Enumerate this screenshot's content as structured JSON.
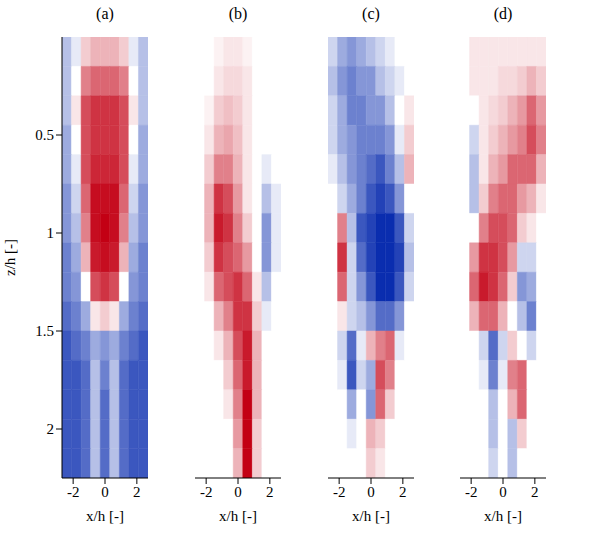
{
  "chart_data": [
    {
      "type": "heatmap",
      "title": "(a)",
      "xlabel": "x/h [-]",
      "ylabel": "z/h [-]",
      "xlim": [
        -2.7,
        2.7
      ],
      "ylim": [
        0,
        2.25
      ],
      "xticks": [
        -2,
        0,
        2
      ],
      "yticks": [
        0.5,
        1,
        1.5,
        2
      ],
      "color_range": [
        -1,
        1
      ],
      "x": [
        -2.4,
        -1.8,
        -1.2,
        -0.6,
        0,
        0.6,
        1.2,
        1.8,
        2.4
      ],
      "y": [
        0.075,
        0.225,
        0.375,
        0.525,
        0.675,
        0.825,
        0.975,
        1.125,
        1.275,
        1.425,
        1.575,
        1.725,
        1.875,
        2.025,
        2.175
      ],
      "values": [
        [
          -0.3,
          -0.1,
          0.2,
          0.3,
          0.3,
          0.3,
          0.2,
          -0.1,
          -0.3
        ],
        [
          -0.3,
          0,
          0.5,
          0.6,
          0.6,
          0.6,
          0.5,
          0,
          -0.3
        ],
        [
          -0.3,
          0.1,
          0.7,
          0.8,
          0.8,
          0.8,
          0.7,
          0.1,
          -0.3
        ],
        [
          -0.4,
          0,
          0.7,
          0.8,
          0.8,
          0.8,
          0.7,
          0,
          -0.4
        ],
        [
          -0.4,
          -0.1,
          0.7,
          0.85,
          0.85,
          0.85,
          0.7,
          -0.1,
          -0.4
        ],
        [
          -0.5,
          -0.2,
          0.6,
          0.95,
          0.95,
          0.95,
          0.6,
          -0.2,
          -0.5
        ],
        [
          -0.5,
          -0.3,
          0.5,
          0.95,
          1,
          0.95,
          0.5,
          -0.3,
          -0.5
        ],
        [
          -0.6,
          -0.4,
          0.3,
          0.9,
          0.95,
          0.9,
          0.3,
          -0.4,
          -0.6
        ],
        [
          -0.6,
          -0.5,
          0,
          0.7,
          0.8,
          0.7,
          0,
          -0.5,
          -0.6
        ],
        [
          -0.7,
          -0.6,
          -0.4,
          0.1,
          0.2,
          0.1,
          -0.4,
          -0.6,
          -0.7
        ],
        [
          -0.8,
          -0.7,
          -0.6,
          -0.4,
          -0.5,
          -0.4,
          -0.6,
          -0.7,
          -0.8
        ],
        [
          -0.8,
          -0.8,
          -0.7,
          -0.3,
          -0.6,
          -0.3,
          -0.7,
          -0.8,
          -0.8
        ],
        [
          -0.8,
          -0.8,
          -0.7,
          -0.3,
          -0.7,
          -0.3,
          -0.7,
          -0.8,
          -0.8
        ],
        [
          -0.8,
          -0.8,
          -0.7,
          -0.3,
          -0.7,
          -0.3,
          -0.7,
          -0.8,
          -0.8
        ],
        [
          -0.8,
          -0.8,
          -0.7,
          -0.3,
          -0.7,
          -0.3,
          -0.7,
          -0.8,
          -0.8
        ]
      ]
    },
    {
      "type": "heatmap",
      "title": "(b)",
      "xlabel": "x/h [-]",
      "tick_labels": "x",
      "xlim": [
        -2.7,
        2.7
      ],
      "ylim": [
        0,
        2.25
      ],
      "xticks": [
        -2,
        0,
        2
      ],
      "color_range": [
        -1,
        1
      ],
      "x": [
        -2.4,
        -1.8,
        -1.2,
        -0.6,
        0,
        0.6,
        1.2,
        1.8,
        2.4
      ],
      "y": [
        0.075,
        0.225,
        0.375,
        0.525,
        0.675,
        0.825,
        0.975,
        1.125,
        1.275,
        1.425,
        1.575,
        1.725,
        1.875,
        2.025,
        2.175
      ],
      "values": [
        [
          0,
          0,
          0.05,
          0.1,
          0.1,
          0.05,
          0,
          0,
          0
        ],
        [
          0,
          0,
          0.1,
          0.15,
          0.15,
          0.1,
          0,
          0,
          0
        ],
        [
          0,
          0.05,
          0.2,
          0.25,
          0.2,
          0.1,
          0,
          0,
          0
        ],
        [
          0,
          0.1,
          0.3,
          0.35,
          0.25,
          0.1,
          0,
          0,
          0
        ],
        [
          0,
          0.2,
          0.5,
          0.5,
          0.3,
          0.1,
          0,
          -0.1,
          0
        ],
        [
          0,
          0.3,
          0.8,
          0.7,
          0.4,
          0.1,
          0,
          -0.3,
          -0.1
        ],
        [
          0,
          0.3,
          0.9,
          0.8,
          0.5,
          0.2,
          0,
          -0.5,
          -0.1
        ],
        [
          0,
          0.2,
          0.8,
          0.7,
          0.6,
          0.4,
          0,
          -0.5,
          -0.1
        ],
        [
          0,
          0.1,
          0.6,
          0.7,
          0.8,
          0.6,
          0.1,
          -0.3,
          0
        ],
        [
          0,
          0,
          0.3,
          0.5,
          0.8,
          0.8,
          0.2,
          -0.1,
          0
        ],
        [
          0,
          0,
          0.1,
          0.3,
          0.7,
          0.9,
          0.3,
          0,
          0
        ],
        [
          0,
          0,
          0,
          0.2,
          0.6,
          0.9,
          0.3,
          0,
          0
        ],
        [
          0,
          0,
          0,
          0.1,
          0.5,
          1,
          0.3,
          0,
          0
        ],
        [
          0,
          0,
          0,
          0,
          0.4,
          1,
          0.2,
          0,
          0
        ],
        [
          0,
          0,
          0,
          0,
          0.3,
          1,
          0.2,
          0,
          0
        ]
      ]
    },
    {
      "type": "heatmap",
      "title": "(c)",
      "xlabel": "x/h [-]",
      "tick_labels": "x",
      "xlim": [
        -2.7,
        2.7
      ],
      "ylim": [
        0,
        2.25
      ],
      "xticks": [
        -2,
        0,
        2
      ],
      "color_range": [
        -1,
        1
      ],
      "x": [
        -2.4,
        -1.8,
        -1.2,
        -0.6,
        0,
        0.6,
        1.2,
        1.8,
        2.4
      ],
      "y": [
        0.075,
        0.225,
        0.375,
        0.525,
        0.675,
        0.825,
        0.975,
        1.125,
        1.275,
        1.425,
        1.575,
        1.725,
        1.875,
        2.025,
        2.175
      ],
      "values": [
        [
          -0.2,
          -0.4,
          -0.5,
          -0.4,
          -0.3,
          -0.2,
          -0.1,
          0,
          0
        ],
        [
          -0.3,
          -0.5,
          -0.6,
          -0.5,
          -0.5,
          -0.3,
          -0.2,
          -0.1,
          0
        ],
        [
          -0.2,
          -0.4,
          -0.6,
          -0.6,
          -0.5,
          -0.5,
          -0.3,
          0,
          0.1
        ],
        [
          -0.2,
          -0.4,
          -0.5,
          -0.6,
          -0.6,
          -0.6,
          -0.5,
          -0.1,
          0.2
        ],
        [
          -0.1,
          -0.3,
          -0.5,
          -0.6,
          -0.7,
          -0.8,
          -0.6,
          -0.3,
          0.3
        ],
        [
          0,
          -0.2,
          -0.4,
          -0.6,
          -0.8,
          -0.9,
          -0.8,
          -0.5,
          0
        ],
        [
          0,
          0.5,
          -0.3,
          -0.8,
          -0.9,
          -1,
          -1,
          -0.8,
          -0.2
        ],
        [
          0,
          0.8,
          -0.2,
          -0.7,
          -0.9,
          -1,
          -1,
          -0.9,
          -0.3
        ],
        [
          0,
          0.6,
          -0.2,
          -0.5,
          -0.8,
          -1,
          -1,
          -0.8,
          -0.2
        ],
        [
          0,
          0.1,
          -0.2,
          -0.3,
          -0.5,
          -0.7,
          -0.7,
          -0.5,
          0
        ],
        [
          0,
          -0.2,
          -0.7,
          -0.1,
          0.3,
          0.5,
          0.6,
          -0.1,
          0
        ],
        [
          0,
          -0.1,
          -0.8,
          -0.2,
          -0.4,
          0.7,
          0.5,
          0,
          0
        ],
        [
          0,
          0,
          -0.4,
          0,
          -0.5,
          0.6,
          0.2,
          0,
          0
        ],
        [
          0,
          0,
          -0.1,
          0,
          0.3,
          0.2,
          0,
          0,
          0
        ],
        [
          0,
          0,
          0,
          0,
          0.2,
          0.1,
          0,
          0,
          0
        ]
      ]
    },
    {
      "type": "heatmap",
      "title": "(d)",
      "xlabel": "x/h [-]",
      "tick_labels": "x",
      "xlim": [
        -2.7,
        2.7
      ],
      "ylim": [
        0,
        2.25
      ],
      "xticks": [
        -2,
        0,
        2
      ],
      "color_range": [
        -1,
        1
      ],
      "x": [
        -2.4,
        -1.8,
        -1.2,
        -0.6,
        0,
        0.6,
        1.2,
        1.8,
        2.4
      ],
      "y": [
        0.075,
        0.225,
        0.375,
        0.525,
        0.675,
        0.825,
        0.975,
        1.125,
        1.275,
        1.425,
        1.575,
        1.725,
        1.875,
        2.025,
        2.175
      ],
      "values": [
        [
          0,
          0.1,
          0.1,
          0.1,
          0.1,
          0.1,
          0.1,
          0.1,
          0.1
        ],
        [
          0,
          0.1,
          0.1,
          0.1,
          0.15,
          0.15,
          0.2,
          0.3,
          0.2
        ],
        [
          0,
          0,
          0.1,
          0.15,
          0.2,
          0.3,
          0.4,
          0.6,
          0.4
        ],
        [
          0,
          -0.2,
          0.1,
          0.2,
          0.3,
          0.4,
          0.5,
          0.7,
          0.5
        ],
        [
          0,
          -0.3,
          0.1,
          0.3,
          0.4,
          0.6,
          0.6,
          0.6,
          0.3
        ],
        [
          0,
          -0.3,
          0.2,
          0.5,
          0.6,
          0.6,
          0.4,
          0.3,
          0.1
        ],
        [
          0,
          0,
          0.5,
          0.7,
          0.7,
          0.6,
          0.2,
          0.1,
          0
        ],
        [
          0,
          0.4,
          0.8,
          0.8,
          0.7,
          0.4,
          -0.2,
          -0.2,
          0
        ],
        [
          0,
          0.6,
          0.9,
          0.8,
          0.6,
          0.2,
          -0.5,
          -0.4,
          0
        ],
        [
          0,
          0.3,
          0.6,
          0.6,
          0.3,
          0,
          -0.3,
          -0.6,
          0
        ],
        [
          0,
          0,
          -0.2,
          -0.7,
          -0.2,
          0.2,
          0,
          -0.2,
          0
        ],
        [
          0,
          0,
          -0.1,
          -0.6,
          -0.1,
          0.5,
          0.6,
          0,
          0
        ],
        [
          0,
          0,
          0,
          -0.3,
          0,
          0.3,
          0.6,
          0,
          0
        ],
        [
          0,
          0,
          0,
          -0.3,
          0,
          -0.3,
          0.2,
          0,
          0
        ],
        [
          0,
          0,
          0,
          -0.2,
          0,
          -0.3,
          0,
          0,
          0
        ]
      ]
    }
  ]
}
